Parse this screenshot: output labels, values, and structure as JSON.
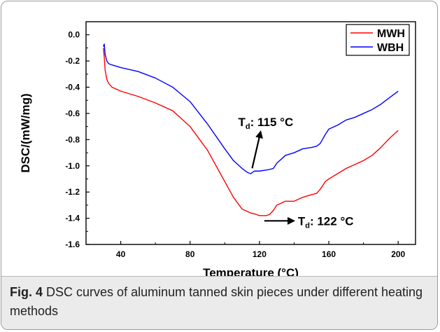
{
  "chart_data": {
    "type": "line",
    "title": "",
    "xlabel": "Temperature (°C)",
    "ylabel": "DSC/(mW/mg)",
    "xlim": [
      20,
      210
    ],
    "ylim": [
      -1.6,
      0.1
    ],
    "xticks": [
      40,
      80,
      120,
      160,
      200
    ],
    "xtick_labels": [
      "40",
      "80",
      "120",
      "160",
      "200"
    ],
    "yticks": [
      0.0,
      -0.2,
      -0.4,
      -0.6,
      -0.8,
      -1.0,
      -1.2,
      -1.4,
      -1.6
    ],
    "ytick_labels": [
      "0.0",
      "-0.2",
      "-0.4",
      "-0.6",
      "-0.8",
      "-1.0",
      "-1.2",
      "-1.4",
      "-1.6"
    ],
    "grid": false,
    "legend_position": "top-right",
    "series": [
      {
        "name": "MWH",
        "color": "#ff0000",
        "x": [
          30,
          30.5,
          31,
          32,
          33,
          35,
          40,
          50,
          60,
          70,
          80,
          90,
          100,
          105,
          110,
          115,
          118,
          120,
          122,
          124,
          126,
          128,
          130,
          135,
          140,
          145,
          150,
          153,
          155,
          158,
          160,
          165,
          170,
          175,
          180,
          185,
          190,
          195,
          200
        ],
        "y": [
          -0.1,
          -0.17,
          -0.27,
          -0.34,
          -0.37,
          -0.4,
          -0.43,
          -0.47,
          -0.52,
          -0.58,
          -0.7,
          -0.88,
          -1.12,
          -1.24,
          -1.33,
          -1.36,
          -1.37,
          -1.38,
          -1.38,
          -1.38,
          -1.37,
          -1.34,
          -1.3,
          -1.27,
          -1.27,
          -1.24,
          -1.22,
          -1.21,
          -1.18,
          -1.12,
          -1.1,
          -1.06,
          -1.02,
          -0.99,
          -0.96,
          -0.92,
          -0.86,
          -0.79,
          -0.73
        ]
      },
      {
        "name": "WBH",
        "color": "#0000ff",
        "x": [
          30,
          30.5,
          31,
          32,
          33,
          35,
          40,
          50,
          60,
          70,
          80,
          90,
          100,
          105,
          110,
          113,
          115,
          117,
          120,
          125,
          128,
          130,
          135,
          140,
          145,
          150,
          153,
          155,
          158,
          160,
          165,
          170,
          175,
          180,
          185,
          190,
          195,
          200
        ],
        "y": [
          -0.09,
          -0.07,
          -0.15,
          -0.2,
          -0.22,
          -0.23,
          -0.25,
          -0.28,
          -0.33,
          -0.4,
          -0.51,
          -0.68,
          -0.87,
          -0.96,
          -1.02,
          -1.05,
          -1.06,
          -1.04,
          -1.04,
          -1.03,
          -1.02,
          -0.98,
          -0.92,
          -0.9,
          -0.87,
          -0.86,
          -0.85,
          -0.83,
          -0.76,
          -0.72,
          -0.69,
          -0.65,
          -0.63,
          -0.6,
          -0.57,
          -0.53,
          -0.48,
          -0.43
        ]
      }
    ],
    "annotations": [
      {
        "label": "T",
        "sub": "d",
        "text": ": 115 °C",
        "x": 115,
        "y": -1.04
      },
      {
        "label": "T",
        "sub": "d",
        "text": ": 122 °C",
        "x": 122,
        "y": -1.42
      }
    ]
  },
  "caption": {
    "label": "Fig. 4",
    "text": "DSC curves of aluminum tanned skin pieces under different heating methods"
  }
}
